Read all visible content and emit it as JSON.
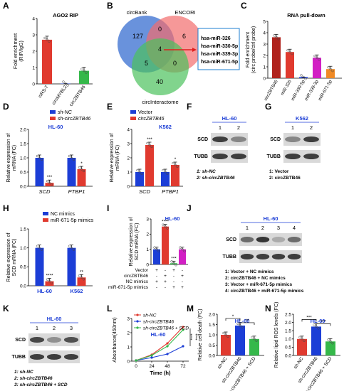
{
  "panel_letters": [
    "A",
    "B",
    "C",
    "D",
    "E",
    "F",
    "G",
    "H",
    "I",
    "J",
    "K",
    "L",
    "M",
    "N"
  ],
  "colors": {
    "red": "#e03a2f",
    "blue": "#1c3ed6",
    "green": "#35b84a",
    "magenta": "#d21fc4",
    "orange": "#f08a24",
    "darkred": "#b0221c"
  },
  "chart_data": [
    {
      "panel": "A",
      "type": "bar",
      "title": "AGO2 RIP",
      "ylabel": "Fold enrichment (RIP/IgG)",
      "categories": [
        "ciRS-7",
        "circMYBL2",
        "circZBTB46"
      ],
      "values": [
        2.7,
        0.02,
        0.8
      ],
      "ylim": [
        0,
        4
      ],
      "yticks": [
        "0",
        "1",
        "2",
        "3",
        "4"
      ]
    },
    {
      "panel": "C",
      "type": "bar",
      "title": "RNA pull-down",
      "ylabel": "Fold enrichment (circ probe/ctrl probe)",
      "categories": [
        "circZBTB46",
        "miR-326",
        "miR-330-5p",
        "miR-339-3p",
        "miR-671-5p"
      ],
      "values": [
        3.6,
        2.3,
        0.1,
        1.8,
        0.8
      ],
      "ylim": [
        0,
        5
      ],
      "yticks": [
        "0",
        "1",
        "2",
        "3",
        "4",
        "5"
      ]
    },
    {
      "panel": "D",
      "type": "bar",
      "subtitle": "HL-60",
      "ylabel": "Relative expression of mRNA (FC)",
      "categories": [
        "SCD",
        "PTBP1"
      ],
      "series": [
        {
          "name": "sh-NC",
          "values": [
            1.0,
            1.0
          ]
        },
        {
          "name": "sh-circZBTB46",
          "values": [
            0.12,
            0.6
          ]
        }
      ],
      "ylim": [
        0,
        2.0
      ],
      "yticks": [
        "0.0",
        "0.5",
        "1.0",
        "1.5",
        "2.0"
      ],
      "stars": [
        "***",
        "*"
      ]
    },
    {
      "panel": "E",
      "type": "bar",
      "subtitle": "K562",
      "ylabel": "Relative expression of mRNA (FC)",
      "categories": [
        "SCD",
        "PTBP1"
      ],
      "series": [
        {
          "name": "Vector",
          "values": [
            1.0,
            1.0
          ]
        },
        {
          "name": "circZBTB46",
          "values": [
            2.9,
            1.5
          ]
        }
      ],
      "ylim": [
        0,
        4
      ],
      "yticks": [
        "0",
        "1",
        "2",
        "3",
        "4"
      ],
      "stars": [
        "***",
        "*"
      ]
    },
    {
      "panel": "H",
      "type": "bar",
      "ylabel": "Relative expression of SCD mRNA (FC)",
      "categories": [
        "HL-60",
        "K562"
      ],
      "series": [
        {
          "name": "NC mimics",
          "values": [
            1.0,
            1.0
          ]
        },
        {
          "name": "miR-671-5p mimics",
          "values": [
            0.12,
            0.22
          ]
        }
      ],
      "ylim": [
        0,
        1.5
      ],
      "yticks": [
        "0.0",
        "0.5",
        "1.0",
        "1.5"
      ],
      "stars": [
        "****",
        "**"
      ]
    },
    {
      "panel": "I",
      "type": "bar",
      "subtitle": "HL-60",
      "ylabel": "Relative expression of SCD mRNA (FC)",
      "values": [
        1.0,
        2.5,
        0.08,
        1.0
      ],
      "ylim": [
        0,
        3
      ],
      "yticks": [
        "0",
        "1",
        "2",
        "3"
      ],
      "stars": [
        "",
        "****",
        "***",
        ""
      ],
      "condition_labels": [
        "Vector",
        "circZBTB46",
        "NC mimics",
        "miR-671-5p mimics"
      ],
      "condition_matrix": [
        [
          "+",
          "-",
          "+",
          "-"
        ],
        [
          "-",
          "+",
          "-",
          "+"
        ],
        [
          "+",
          "+",
          "-",
          "-"
        ],
        [
          "-",
          "-",
          "+",
          "+"
        ]
      ]
    },
    {
      "panel": "L",
      "type": "line",
      "subtitle": "HL-60",
      "xlabel": "Time (h)",
      "ylabel": "Absorbance(450nm)",
      "x": [
        0,
        24,
        48,
        72
      ],
      "xticks": [
        "0",
        "24",
        "48",
        "72"
      ],
      "ylim": [
        0,
        3
      ],
      "yticks": [
        "0",
        "1",
        "2",
        "3"
      ],
      "series": [
        {
          "name": "sh-NC",
          "values": [
            0.05,
            0.45,
            1.25,
            2.4
          ]
        },
        {
          "name": "sh-circZBTB46",
          "values": [
            0.05,
            0.25,
            0.5,
            1.05
          ]
        },
        {
          "name": "sh-circZBTB46 + SCD",
          "values": [
            0.05,
            0.4,
            1.05,
            2.2
          ]
        }
      ],
      "stars": [
        "****",
        "****"
      ]
    },
    {
      "panel": "M",
      "type": "bar",
      "subtitle": "HL-60",
      "ylabel": "Relative cell death (FC)",
      "categories": [
        "sh-NC",
        "sh-circZBTB46",
        "sh-circZBTB46 + SCD"
      ],
      "values": [
        1.0,
        1.45,
        0.8
      ],
      "ylim": [
        0,
        2.0
      ],
      "yticks": [
        "0.0",
        "0.5",
        "1.0",
        "1.5",
        "2.0"
      ],
      "stars": [
        "*",
        "**"
      ]
    },
    {
      "panel": "N",
      "type": "bar",
      "subtitle": "HL-60",
      "ylabel": "Relative lipid ROS levels (FC)",
      "categories": [
        "sh-NC",
        "sh-circZBTB46",
        "sh-circZBTB46 + SCD"
      ],
      "values": [
        1.0,
        1.75,
        0.85
      ],
      "ylim": [
        0,
        2.5
      ],
      "yticks": [
        "0.0",
        "0.5",
        "1.0",
        "1.5",
        "2.0",
        "2.5"
      ],
      "stars": [
        "***",
        "***"
      ]
    }
  ],
  "venn": {
    "sets": [
      "circBank",
      "ENCORI",
      "circInteractome"
    ],
    "counts": {
      "a_only": "127",
      "b_only": "6",
      "c_only": "40",
      "ab": "0",
      "ac": "5",
      "bc": "0",
      "abc": "4"
    },
    "mirnas": [
      "hsa-miR-326",
      "hsa-miR-330-5p",
      "hsa-miR-339-3p",
      "hsa-miR-671-5p"
    ]
  },
  "blots": {
    "F": {
      "cell": "HL-60",
      "lanes": [
        "1",
        "2"
      ],
      "bands": [
        "SCD",
        "TUBB"
      ],
      "legend": [
        "1: sh-NC",
        "2: sh-circZBTB46"
      ]
    },
    "G": {
      "cell": "K562",
      "lanes": [
        "1",
        "2"
      ],
      "bands": [
        "SCD",
        "TUBB"
      ],
      "legend": [
        "1: Vector",
        "2: circZBTB46"
      ]
    },
    "J": {
      "cell": "HL-60",
      "lanes": [
        "1",
        "2",
        "3",
        "4"
      ],
      "bands": [
        "SCD",
        "TUBB"
      ],
      "legend": [
        "1: Vector + NC mimics",
        "2: circZBTB46 + NC mimics",
        "3: Vector + miR-671-5p mimics",
        "4: circZBTB46 + miR-671-5p mimics"
      ]
    },
    "K": {
      "cell": "HL-60",
      "lanes": [
        "1",
        "2",
        "3"
      ],
      "bands": [
        "SCD",
        "TUBB"
      ],
      "legend": [
        "1: sh-NC",
        "2: sh-circZBTB46",
        "3: sh-circZBTB46 + SCD"
      ]
    }
  }
}
